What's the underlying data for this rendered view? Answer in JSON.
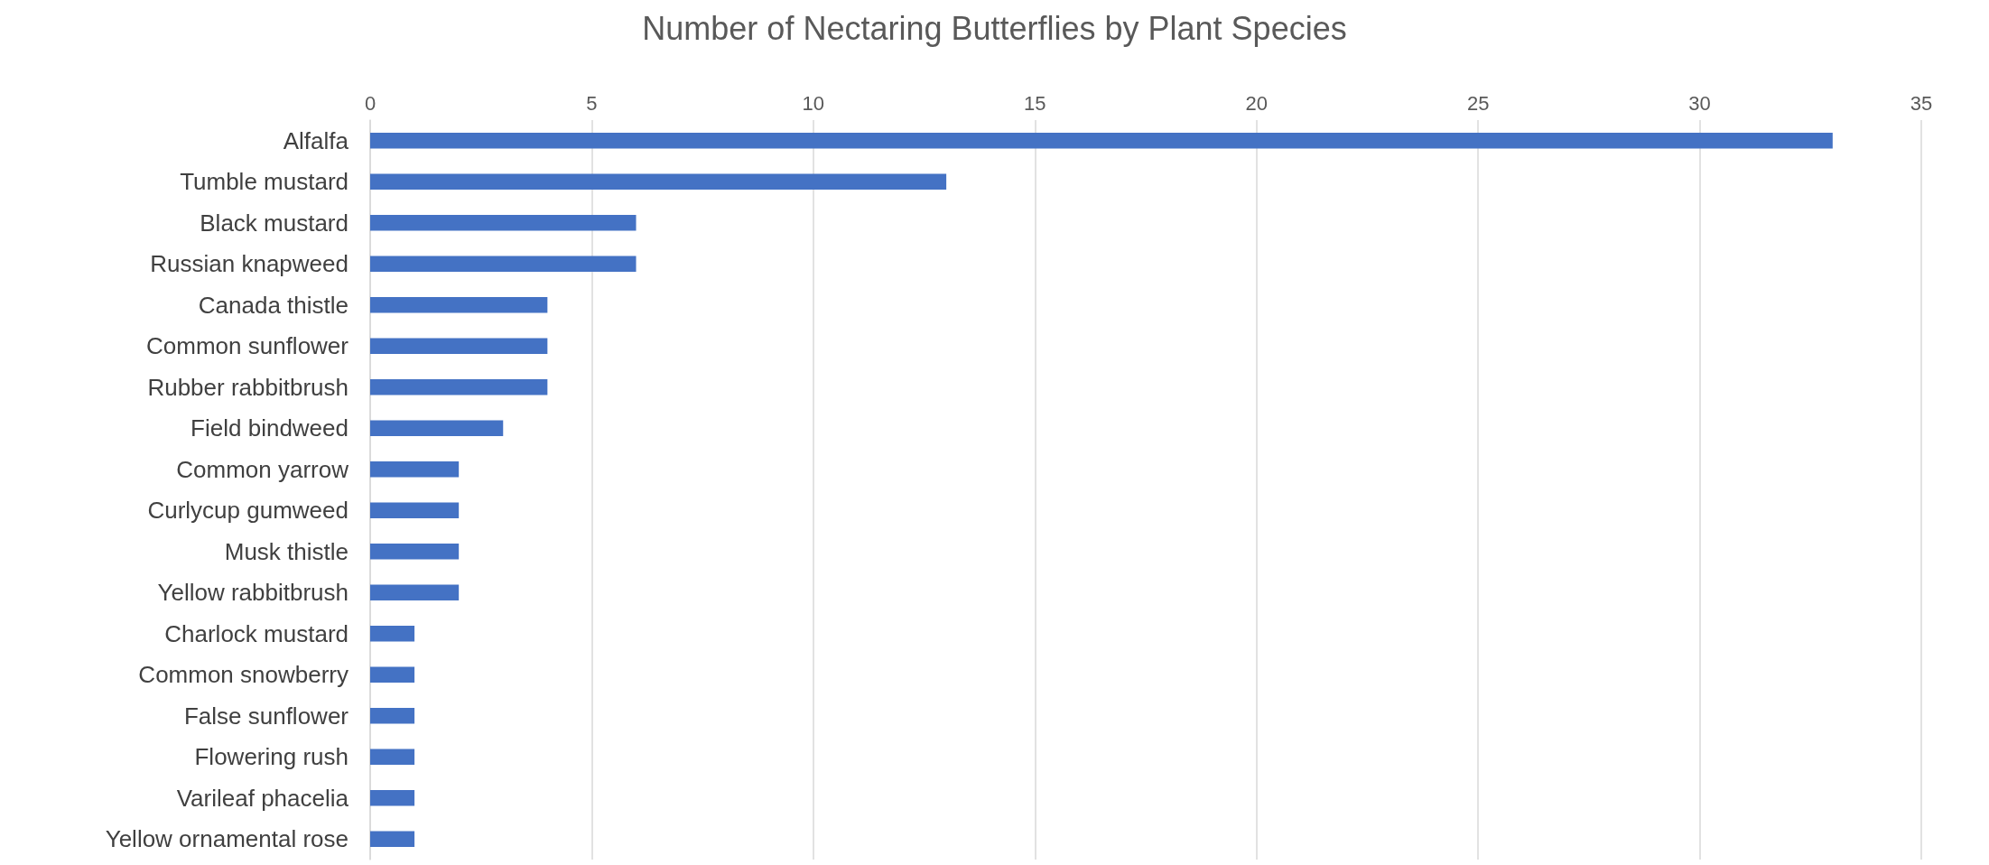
{
  "chart_data": {
    "type": "bar",
    "orientation": "horizontal",
    "title": "Number of Nectaring Butterflies by Plant Species",
    "categories": [
      "Alfalfa",
      "Tumble mustard",
      "Black mustard",
      "Russian knapweed",
      "Canada thistle",
      "Common sunflower",
      "Rubber rabbitbrush",
      "Field bindweed",
      "Common yarrow",
      "Curlycup gumweed",
      "Musk thistle",
      "Yellow rabbitbrush",
      "Charlock mustard",
      "Common snowberry",
      "False sunflower",
      "Flowering rush",
      "Varileaf phacelia",
      "Yellow ornamental rose"
    ],
    "values": [
      33,
      13,
      6,
      6,
      4,
      4,
      4,
      3,
      2,
      2,
      2,
      2,
      1,
      1,
      1,
      1,
      1,
      1
    ],
    "color": "#4472c4",
    "xlim": [
      0,
      35
    ],
    "xticks": [
      0,
      5,
      10,
      15,
      20,
      25,
      30,
      35
    ],
    "grid": "x"
  }
}
